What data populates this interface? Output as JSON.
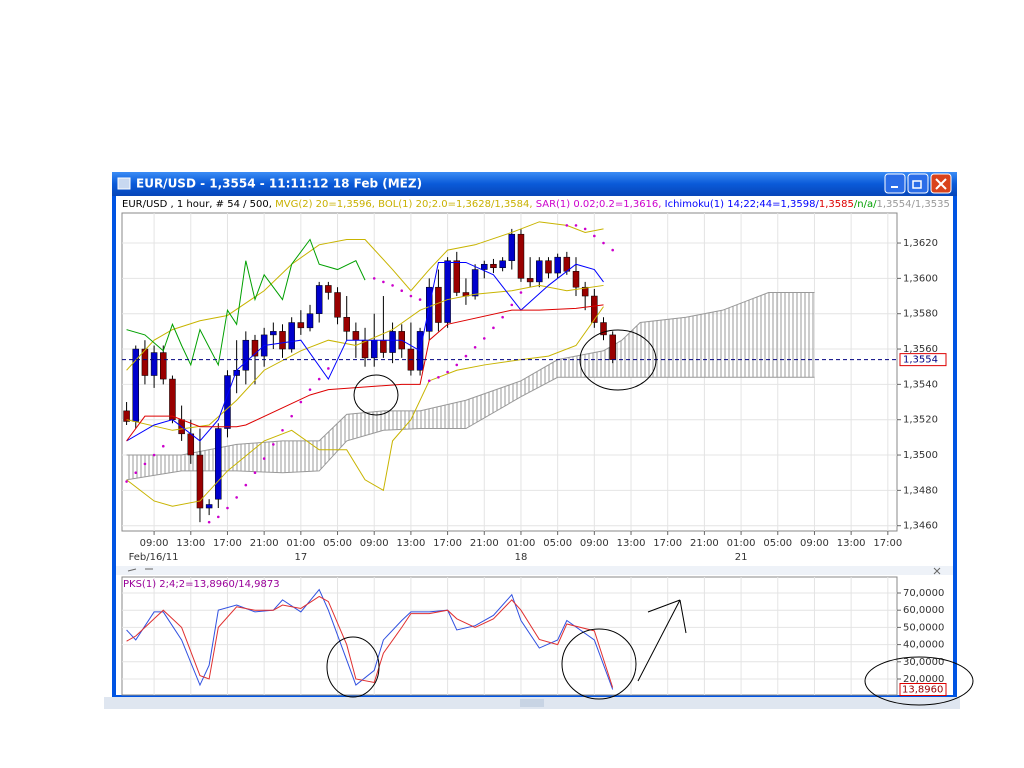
{
  "window_title": "EUR/USD - 1,3554 - 11:11:12  18 Feb (MEZ)",
  "chart_data": [
    {
      "type": "candlestick",
      "header": [
        {
          "text": "EUR/USD , 1 hour, # 54 / 500, ",
          "color": "#000000"
        },
        {
          "text": "MVG(2) 20=1,3596, BOL(1) 20;2.0=1,3628/1,3584, ",
          "color": "#c8b000"
        },
        {
          "text": "SAR(1) 0.02;0.2=1,3616, ",
          "color": "#cc00cc"
        },
        {
          "text": "Ichimoku(1) 14;22;44=1,3598/",
          "color": "#0000ff"
        },
        {
          "text": "1,3585",
          "color": "#dd0000"
        },
        {
          "text": "/n/a/",
          "color": "#00a000"
        },
        {
          "text": "1,3554/1,3535",
          "color": "#999999"
        }
      ],
      "open": [
        1.3525,
        1.3519,
        1.356,
        1.3545,
        1.3558,
        1.3543,
        1.352,
        1.3512,
        1.35,
        1.347,
        1.3475,
        1.3515,
        1.3545,
        1.3548,
        1.3565,
        1.3556,
        1.3568,
        1.357,
        1.356,
        1.3575,
        1.3572,
        1.358,
        1.3596,
        1.3592,
        1.3578,
        1.357,
        1.3565,
        1.3555,
        1.3565,
        1.3558,
        1.357,
        1.356,
        1.3548,
        1.357,
        1.3595,
        1.3575,
        1.361,
        1.3592,
        1.359,
        1.3605,
        1.3608,
        1.3606,
        1.361,
        1.3625,
        1.36,
        1.3598,
        1.361,
        1.3603,
        1.3612,
        1.3604,
        1.3595,
        1.359,
        1.3575,
        1.3568
      ],
      "high": [
        1.353,
        1.3562,
        1.3565,
        1.3562,
        1.3562,
        1.3545,
        1.3528,
        1.352,
        1.3515,
        1.3475,
        1.3518,
        1.3548,
        1.3565,
        1.357,
        1.3568,
        1.3572,
        1.3575,
        1.3574,
        1.3578,
        1.3582,
        1.3585,
        1.3598,
        1.3598,
        1.3595,
        1.359,
        1.3575,
        1.3572,
        1.358,
        1.359,
        1.3575,
        1.3574,
        1.3575,
        1.3572,
        1.36,
        1.3605,
        1.3612,
        1.3615,
        1.36,
        1.3608,
        1.361,
        1.3611,
        1.3612,
        1.3628,
        1.3628,
        1.3612,
        1.3612,
        1.3612,
        1.3614,
        1.3615,
        1.3612,
        1.3598,
        1.3594,
        1.3578,
        1.357
      ],
      "low": [
        1.3517,
        1.3515,
        1.354,
        1.3538,
        1.354,
        1.3518,
        1.3508,
        1.3495,
        1.3462,
        1.3466,
        1.347,
        1.351,
        1.3535,
        1.354,
        1.354,
        1.355,
        1.356,
        1.3555,
        1.3558,
        1.3568,
        1.357,
        1.3575,
        1.3588,
        1.3574,
        1.3565,
        1.3555,
        1.355,
        1.355,
        1.3555,
        1.3552,
        1.3555,
        1.3545,
        1.3545,
        1.3565,
        1.357,
        1.3572,
        1.359,
        1.3585,
        1.3588,
        1.36,
        1.3603,
        1.3604,
        1.3605,
        1.3598,
        1.3595,
        1.3595,
        1.36,
        1.36,
        1.3602,
        1.359,
        1.3582,
        1.3572,
        1.3565,
        1.3552
      ],
      "close": [
        1.3519,
        1.356,
        1.3545,
        1.3558,
        1.3543,
        1.352,
        1.3512,
        1.35,
        1.347,
        1.3472,
        1.3515,
        1.3545,
        1.3548,
        1.3565,
        1.3556,
        1.3568,
        1.357,
        1.356,
        1.3575,
        1.3572,
        1.358,
        1.3596,
        1.3592,
        1.3578,
        1.357,
        1.3565,
        1.3555,
        1.3565,
        1.3558,
        1.357,
        1.356,
        1.3548,
        1.357,
        1.3595,
        1.3575,
        1.361,
        1.3592,
        1.359,
        1.3605,
        1.3608,
        1.3606,
        1.361,
        1.3625,
        1.36,
        1.3598,
        1.361,
        1.3603,
        1.3612,
        1.3604,
        1.3595,
        1.359,
        1.3575,
        1.3568,
        1.3554
      ],
      "up_color": "#0000cc",
      "down_color": "#990000",
      "xlim": [
        -0.5,
        84
      ],
      "xticks": [
        {
          "value": 3,
          "label": "09:00"
        },
        {
          "value": 7,
          "label": "13:00"
        },
        {
          "value": 11,
          "label": "17:00"
        },
        {
          "value": 15,
          "label": "21:00"
        },
        {
          "value": 19,
          "label": "01:00"
        },
        {
          "value": 23,
          "label": "05:00"
        },
        {
          "value": 27,
          "label": "09:00"
        },
        {
          "value": 31,
          "label": "13:00"
        },
        {
          "value": 35,
          "label": "17:00"
        },
        {
          "value": 39,
          "label": "21:00"
        },
        {
          "value": 43,
          "label": "01:00"
        },
        {
          "value": 47,
          "label": "05:00"
        },
        {
          "value": 51,
          "label": "09:00"
        },
        {
          "value": 55,
          "label": "13:00"
        },
        {
          "value": 59,
          "label": "17:00"
        },
        {
          "value": 63,
          "label": "21:00"
        },
        {
          "value": 67,
          "label": "01:00"
        },
        {
          "value": 71,
          "label": "05:00"
        },
        {
          "value": 75,
          "label": "09:00"
        },
        {
          "value": 79,
          "label": "13:00"
        },
        {
          "value": 83,
          "label": "17:00"
        }
      ],
      "date_ticks": [
        {
          "value": 0,
          "label": "Feb/16/11"
        },
        {
          "value": 19,
          "label": "17"
        },
        {
          "value": 43,
          "label": "18"
        },
        {
          "value": 67,
          "label": "21"
        }
      ],
      "ylim": [
        1.3457,
        1.3637
      ],
      "yticks": [
        {
          "value": 1.346,
          "label": "1,3460"
        },
        {
          "value": 1.348,
          "label": "1,3480"
        },
        {
          "value": 1.35,
          "label": "1,3500"
        },
        {
          "value": 1.352,
          "label": "1,3520"
        },
        {
          "value": 1.354,
          "label": "1,3540"
        },
        {
          "value": 1.356,
          "label": "1,3560"
        },
        {
          "value": 1.358,
          "label": "1,3580"
        },
        {
          "value": 1.36,
          "label": "1,3600"
        },
        {
          "value": 1.362,
          "label": "1,3620"
        }
      ],
      "grid": true,
      "last": {
        "value": 1.3554,
        "label": "1,3554",
        "color": "#000080"
      },
      "cloud": {
        "color": "#999999",
        "x": [
          0,
          6,
          12,
          17,
          21,
          24,
          28,
          32,
          37,
          43,
          47,
          52,
          54,
          56,
          61,
          65,
          68,
          70,
          75
        ],
        "span_a": [
          1.35,
          1.35,
          1.3506,
          1.3508,
          1.3508,
          1.3523,
          1.3525,
          1.3525,
          1.3531,
          1.3542,
          1.3554,
          1.3559,
          1.3565,
          1.3575,
          1.3578,
          1.3582,
          1.3588,
          1.3592,
          1.3592
        ],
        "span_b": [
          1.3486,
          1.3491,
          1.3491,
          1.349,
          1.3491,
          1.3508,
          1.3514,
          1.3515,
          1.3515,
          1.3533,
          1.3544,
          1.3544,
          1.3544,
          1.3544,
          1.3544,
          1.3544,
          1.3544,
          1.3544,
          1.3544
        ]
      },
      "series": [
        {
          "style": "line",
          "color": "#c8b400",
          "x": [
            0,
            3,
            5,
            8,
            11,
            15,
            18,
            21,
            24,
            26,
            29,
            31,
            33,
            35,
            38,
            42,
            45,
            48,
            50,
            52
          ],
          "values": [
            1.3548,
            1.3565,
            1.3571,
            1.3576,
            1.3579,
            1.3593,
            1.3608,
            1.3619,
            1.3622,
            1.3622,
            1.3605,
            1.3593,
            1.3605,
            1.3616,
            1.3619,
            1.3626,
            1.3632,
            1.363,
            1.3626,
            1.3628
          ]
        },
        {
          "style": "line",
          "color": "#c8b400",
          "x": [
            0,
            3,
            5,
            8,
            11,
            15,
            18,
            21,
            24,
            26,
            28,
            29,
            31,
            33,
            36,
            39,
            43,
            46,
            49,
            52
          ],
          "values": [
            1.3486,
            1.3474,
            1.3471,
            1.3474,
            1.3491,
            1.3508,
            1.3514,
            1.3503,
            1.3503,
            1.3486,
            1.348,
            1.3508,
            1.352,
            1.3542,
            1.3548,
            1.3551,
            1.3554,
            1.3556,
            1.3562,
            1.3584
          ]
        },
        {
          "style": "line",
          "color": "#c8b400",
          "x": [
            0,
            5,
            9,
            12,
            15,
            19,
            22,
            25,
            29,
            32,
            35,
            38,
            42,
            45,
            48,
            52
          ],
          "values": [
            1.352,
            1.3514,
            1.3517,
            1.3531,
            1.3548,
            1.3559,
            1.3565,
            1.3562,
            1.3571,
            1.3582,
            1.3588,
            1.3591,
            1.3593,
            1.3596,
            1.3593,
            1.3596
          ]
        },
        {
          "style": "line",
          "color": "#0000ff",
          "x": [
            0,
            3,
            5,
            8,
            10,
            12,
            15,
            19,
            22,
            24,
            27,
            30,
            32,
            34,
            37,
            40,
            43,
            46,
            49,
            51,
            52
          ],
          "values": [
            1.3508,
            1.3517,
            1.352,
            1.3508,
            1.352,
            1.3548,
            1.3562,
            1.3565,
            1.3543,
            1.3565,
            1.3565,
            1.3565,
            1.3559,
            1.3609,
            1.3609,
            1.3602,
            1.3582,
            1.3596,
            1.3608,
            1.3605,
            1.3598
          ]
        },
        {
          "style": "line",
          "color": "#dd0000",
          "x": [
            0,
            2,
            5,
            8,
            12,
            13,
            20,
            22,
            30,
            32,
            33,
            35,
            42,
            45,
            49,
            52
          ],
          "values": [
            1.3508,
            1.3522,
            1.3522,
            1.3516,
            1.3516,
            1.3517,
            1.3534,
            1.3537,
            1.354,
            1.354,
            1.3565,
            1.3574,
            1.3582,
            1.3582,
            1.3583,
            1.3585
          ]
        },
        {
          "style": "line",
          "color": "#00a000",
          "x": [
            0,
            2,
            4,
            5,
            6,
            7,
            8,
            10,
            11,
            12,
            13,
            14,
            15,
            17,
            18,
            20,
            21,
            23,
            25,
            26
          ],
          "values": [
            1.3571,
            1.3568,
            1.3559,
            1.3574,
            1.3562,
            1.3551,
            1.3571,
            1.3551,
            1.3582,
            1.3574,
            1.361,
            1.3588,
            1.3602,
            1.3588,
            1.3608,
            1.3622,
            1.3608,
            1.3605,
            1.361,
            1.3599
          ]
        },
        {
          "style": "dots",
          "color": "#cc00cc",
          "x": [
            0,
            1,
            2,
            3,
            4,
            9,
            10,
            11,
            12,
            13,
            14,
            15,
            16,
            17,
            18,
            19,
            20,
            21,
            22,
            27,
            28,
            29,
            30,
            31,
            32,
            33,
            34,
            35,
            36,
            37,
            38,
            39,
            40,
            41,
            42,
            43,
            48,
            49,
            50,
            51,
            52,
            53
          ],
          "values": [
            1.3485,
            1.349,
            1.3495,
            1.35,
            1.3505,
            1.3462,
            1.3465,
            1.347,
            1.3476,
            1.3483,
            1.349,
            1.3498,
            1.3506,
            1.3514,
            1.3522,
            1.353,
            1.3537,
            1.3543,
            1.3549,
            1.36,
            1.3598,
            1.3596,
            1.3593,
            1.359,
            1.3588,
            1.3542,
            1.3544,
            1.3547,
            1.3551,
            1.3556,
            1.3561,
            1.3566,
            1.3572,
            1.3578,
            1.3585,
            1.3592,
            1.363,
            1.363,
            1.3628,
            1.3624,
            1.362,
            1.3616
          ]
        }
      ]
    },
    {
      "type": "line",
      "title": "PKS(1) 2;4;2=13,8960/14,9873",
      "title_color": "#990099",
      "xlim": [
        -0.5,
        84
      ],
      "ylim": [
        10.7,
        79.3
      ],
      "yticks": [
        {
          "value": 20,
          "label": "20,0000"
        },
        {
          "value": 30,
          "label": "30,0000"
        },
        {
          "value": 40,
          "label": "40,0000"
        },
        {
          "value": 50,
          "label": "50,0000"
        },
        {
          "value": 60,
          "label": "60,0000"
        },
        {
          "value": 70,
          "label": "70,0000"
        }
      ],
      "grid": true,
      "last": {
        "value": 13.896,
        "label": "13,8960"
      },
      "series": [
        {
          "color": "#3050e0",
          "x": [
            0,
            1,
            3,
            4,
            6,
            8,
            9,
            10,
            12,
            14,
            16,
            17,
            19,
            21,
            22,
            24,
            25,
            27,
            28,
            30,
            31,
            33,
            35,
            36,
            38,
            40,
            42,
            43,
            45,
            47,
            48,
            51,
            53
          ],
          "values": [
            48.5,
            42.7,
            59,
            59,
            42.7,
            16.5,
            28,
            60,
            63,
            59,
            60,
            66,
            59,
            72,
            60,
            31,
            16.5,
            25,
            42.7,
            54,
            59,
            59,
            60,
            48.5,
            51,
            57,
            69,
            54,
            38,
            42.7,
            54,
            42.7,
            13.896
          ]
        },
        {
          "color": "#e03030",
          "x": [
            0,
            1,
            3,
            4,
            6,
            8,
            9,
            10,
            12,
            14,
            16,
            17,
            19,
            21,
            22,
            24,
            25,
            27,
            28,
            30,
            31,
            33,
            35,
            36,
            38,
            40,
            42,
            43,
            45,
            47,
            48,
            51,
            53
          ],
          "values": [
            42,
            45,
            55,
            60,
            50,
            22,
            20,
            50,
            62,
            60,
            60,
            63,
            61,
            68,
            65,
            40,
            20,
            18,
            35,
            50,
            58,
            58,
            60,
            55,
            50,
            55,
            66,
            60,
            43,
            40,
            52,
            48,
            14.9873
          ]
        }
      ]
    }
  ]
}
